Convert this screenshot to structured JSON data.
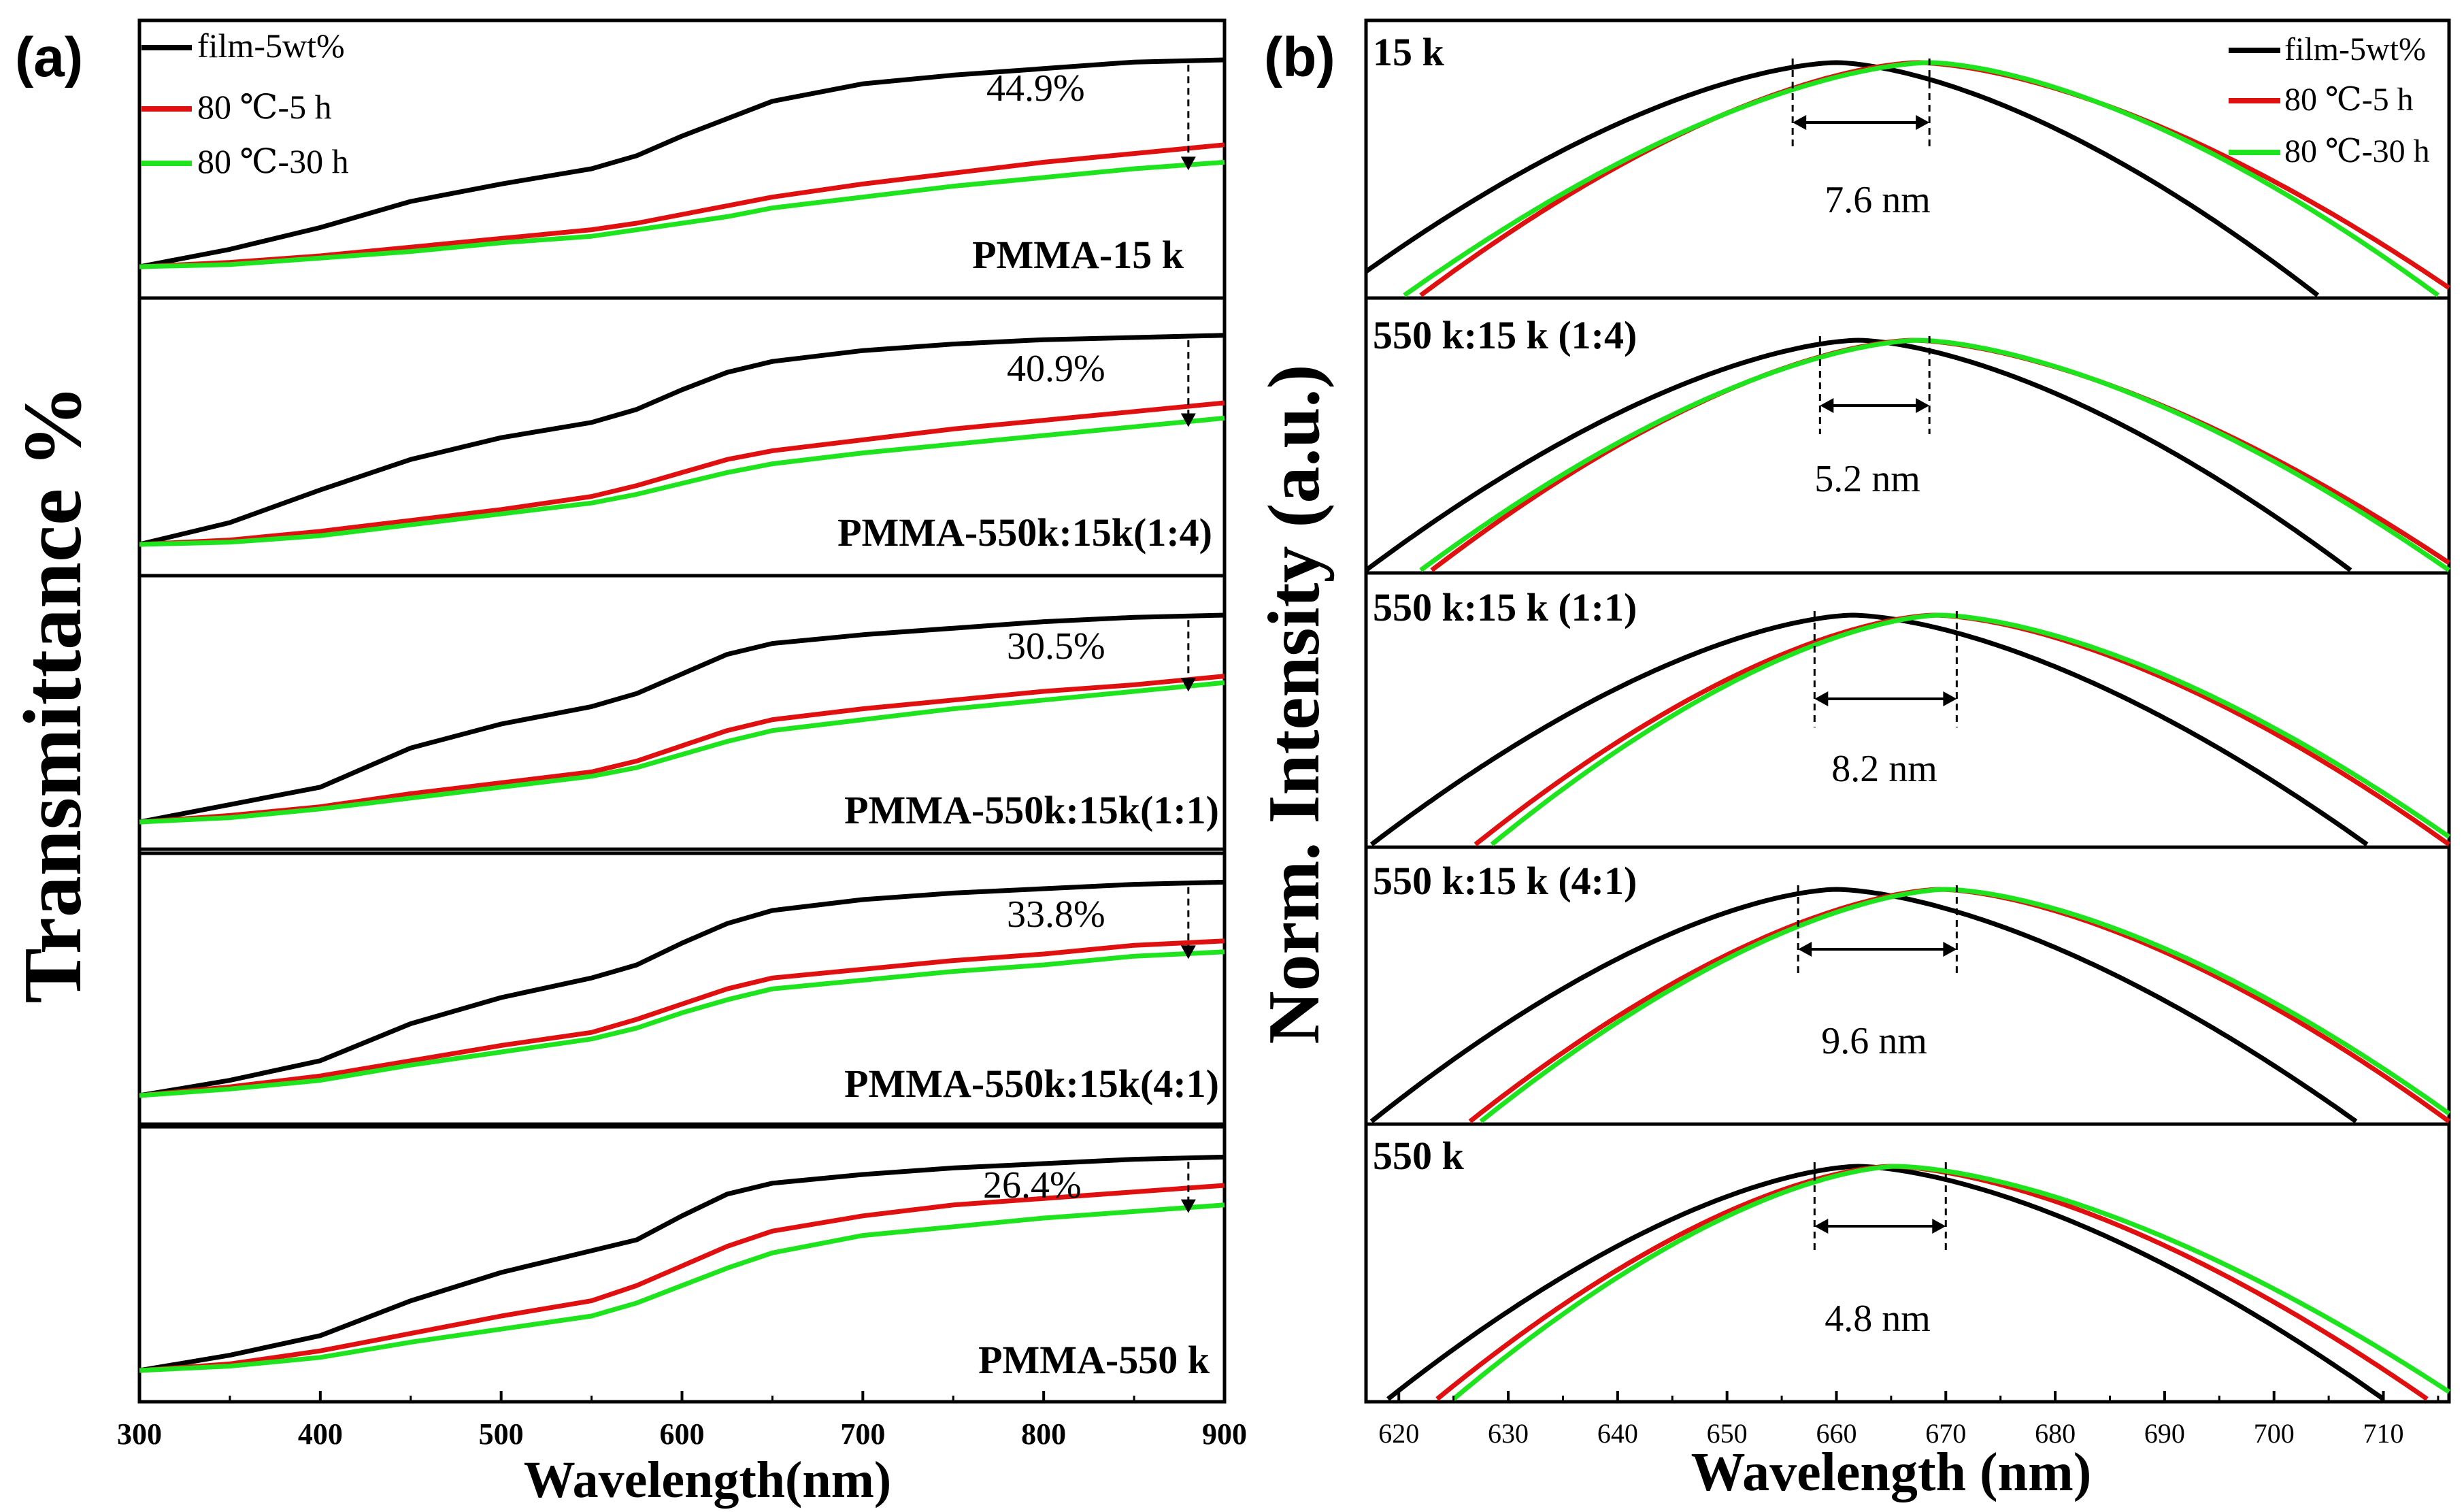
{
  "colors": {
    "film": "#000000",
    "h5": "#e01010",
    "h30": "#1ee41e",
    "axis": "#000000"
  },
  "chart_data": [
    {
      "type": "line",
      "panel_label": "(a)",
      "ylabel": "Transmittance %",
      "xlabel": "Wavelength(nm)",
      "xlim": [
        300,
        900
      ],
      "xticks": [
        "300",
        "400",
        "500",
        "600",
        "700",
        "800",
        "900"
      ],
      "legend": {
        "position": "top-left",
        "entries": [
          "film-5wt%",
          "80 ℃-5 h",
          "80 ℃-30 h"
        ]
      },
      "series_names": [
        "film-5wt%",
        "80 ℃-5 h",
        "80 ℃-30 h"
      ],
      "arrow_at_x": 880,
      "x": [
        300,
        350,
        400,
        450,
        500,
        550,
        575,
        600,
        625,
        650,
        700,
        750,
        800,
        850,
        900
      ],
      "subplots": [
        {
          "label": "PMMA-15 k",
          "drop_label": "44.9%",
          "series": [
            {
              "name": "film-5wt%",
              "values": [
                0.0,
                0.08,
                0.18,
                0.3,
                0.38,
                0.45,
                0.51,
                0.6,
                0.68,
                0.76,
                0.84,
                0.88,
                0.91,
                0.94,
                0.95
              ]
            },
            {
              "name": "80 ℃-5 h",
              "values": [
                0.0,
                0.02,
                0.05,
                0.09,
                0.13,
                0.17,
                0.2,
                0.24,
                0.28,
                0.32,
                0.38,
                0.43,
                0.48,
                0.52,
                0.56
              ]
            },
            {
              "name": "80 ℃-30 h",
              "values": [
                0.0,
                0.01,
                0.04,
                0.07,
                0.11,
                0.14,
                0.17,
                0.2,
                0.23,
                0.27,
                0.32,
                0.37,
                0.41,
                0.45,
                0.48
              ]
            }
          ]
        },
        {
          "label": "PMMA-550k:15k(1:4)",
          "drop_label": "40.9%",
          "series": [
            {
              "name": "film-5wt%",
              "values": [
                0.0,
                0.1,
                0.25,
                0.39,
                0.49,
                0.56,
                0.62,
                0.71,
                0.79,
                0.84,
                0.89,
                0.92,
                0.94,
                0.95,
                0.96
              ]
            },
            {
              "name": "80 ℃-5 h",
              "values": [
                0.0,
                0.02,
                0.06,
                0.11,
                0.16,
                0.22,
                0.27,
                0.33,
                0.39,
                0.43,
                0.48,
                0.53,
                0.57,
                0.61,
                0.65
              ]
            },
            {
              "name": "80 ℃-30 h",
              "values": [
                0.0,
                0.01,
                0.04,
                0.09,
                0.14,
                0.19,
                0.23,
                0.28,
                0.33,
                0.37,
                0.42,
                0.46,
                0.5,
                0.54,
                0.58
              ]
            }
          ]
        },
        {
          "label": "PMMA-550k:15k(1:1)",
          "drop_label": "30.5%",
          "series": [
            {
              "name": "film-5wt%",
              "values": [
                0.0,
                0.08,
                0.16,
                0.34,
                0.45,
                0.53,
                0.59,
                0.68,
                0.77,
                0.82,
                0.86,
                0.89,
                0.92,
                0.94,
                0.95
              ]
            },
            {
              "name": "80 ℃-5 h",
              "values": [
                0.0,
                0.03,
                0.07,
                0.13,
                0.18,
                0.23,
                0.28,
                0.35,
                0.42,
                0.47,
                0.52,
                0.56,
                0.6,
                0.63,
                0.67
              ]
            },
            {
              "name": "80 ℃-30 h",
              "values": [
                0.0,
                0.02,
                0.06,
                0.11,
                0.16,
                0.21,
                0.25,
                0.31,
                0.37,
                0.42,
                0.47,
                0.52,
                0.56,
                0.6,
                0.64
              ]
            }
          ]
        },
        {
          "label": "PMMA-550k:15k(4:1)",
          "drop_label": "33.8%",
          "series": [
            {
              "name": "film-5wt%",
              "values": [
                0.0,
                0.07,
                0.16,
                0.33,
                0.45,
                0.54,
                0.6,
                0.7,
                0.79,
                0.85,
                0.9,
                0.93,
                0.95,
                0.97,
                0.98
              ]
            },
            {
              "name": "80 ℃-5 h",
              "values": [
                0.0,
                0.04,
                0.09,
                0.16,
                0.23,
                0.29,
                0.35,
                0.42,
                0.49,
                0.54,
                0.58,
                0.62,
                0.65,
                0.69,
                0.71
              ]
            },
            {
              "name": "80 ℃-30 h",
              "values": [
                0.0,
                0.03,
                0.07,
                0.14,
                0.2,
                0.26,
                0.31,
                0.38,
                0.44,
                0.49,
                0.53,
                0.57,
                0.6,
                0.64,
                0.66
              ]
            }
          ]
        },
        {
          "label": "PMMA-550 k",
          "drop_label": "26.4%",
          "series": [
            {
              "name": "film-5wt%",
              "values": [
                0.0,
                0.07,
                0.16,
                0.32,
                0.45,
                0.55,
                0.6,
                0.71,
                0.81,
                0.86,
                0.9,
                0.93,
                0.95,
                0.97,
                0.98
              ]
            },
            {
              "name": "80 ℃-5 h",
              "values": [
                0.0,
                0.03,
                0.09,
                0.17,
                0.25,
                0.32,
                0.39,
                0.48,
                0.57,
                0.64,
                0.71,
                0.76,
                0.79,
                0.82,
                0.85
              ]
            },
            {
              "name": "80 ℃-30 h",
              "values": [
                0.0,
                0.02,
                0.06,
                0.13,
                0.19,
                0.25,
                0.31,
                0.39,
                0.47,
                0.54,
                0.62,
                0.66,
                0.7,
                0.73,
                0.76
              ]
            }
          ]
        }
      ]
    },
    {
      "type": "line",
      "panel_label": "(b)",
      "ylabel": "Norm. Intensity (a.u.)",
      "xlabel": "Wavelength (nm)",
      "xlim": [
        617,
        716
      ],
      "xticks": [
        "620",
        "630",
        "640",
        "650",
        "660",
        "670",
        "680",
        "690",
        "700",
        "710"
      ],
      "legend": {
        "position": "top-right",
        "entries": [
          "film-5wt%",
          "80 ℃-5 h",
          "80 ℃-30 h"
        ]
      },
      "series_names": [
        "film-5wt%",
        "80 ℃-5 h",
        "80 ℃-30 h"
      ],
      "subplots": [
        {
          "label": "15 k",
          "shift_label": "7.6 nm",
          "shift_from": 656.0,
          "shift_to": 668.5,
          "series": [
            {
              "name": "film-5wt%",
              "peak": 660.0,
              "left_end": 614,
              "right_end": 704
            },
            {
              "name": "80 ℃-5 h",
              "peak": 667.5,
              "left_end": 622,
              "right_end": 717
            },
            {
              "name": "80 ℃-30 h",
              "peak": 668.5,
              "left_end": 620.5,
              "right_end": 715
            }
          ]
        },
        {
          "label": "550 k:15 k (1:4)",
          "shift_label": "5.2 nm",
          "shift_from": 658.5,
          "shift_to": 668.5,
          "series": [
            {
              "name": "film-5wt%",
              "peak": 662.0,
              "left_end": 617,
              "right_end": 707
            },
            {
              "name": "80 ℃-5 h",
              "peak": 667.0,
              "left_end": 623,
              "right_end": 717
            },
            {
              "name": "80 ℃-30 h",
              "peak": 667.5,
              "left_end": 622,
              "right_end": 716
            }
          ]
        },
        {
          "label": "550 k:15 k (1:1)",
          "shift_label": "8.2 nm",
          "shift_from": 658.0,
          "shift_to": 671.0,
          "series": [
            {
              "name": "film-5wt%",
              "peak": 661.5,
              "left_end": 617.5,
              "right_end": 708.5
            },
            {
              "name": "80 ℃-5 h",
              "peak": 669.0,
              "left_end": 627,
              "right_end": 716
            },
            {
              "name": "80 ℃-30 h",
              "peak": 669.5,
              "left_end": 628.5,
              "right_end": 717
            }
          ]
        },
        {
          "label": "550 k:15 k (4:1)",
          "shift_label": "9.6 nm",
          "shift_from": 656.5,
          "shift_to": 671.0,
          "series": [
            {
              "name": "film-5wt%",
              "peak": 660.0,
              "left_end": 617.5,
              "right_end": 707.5
            },
            {
              "name": "80 ℃-5 h",
              "peak": 669.5,
              "left_end": 626.5,
              "right_end": 716
            },
            {
              "name": "80 ℃-30 h",
              "peak": 670.0,
              "left_end": 627.5,
              "right_end": 717
            }
          ]
        },
        {
          "label": "550 k",
          "shift_label": "4.8 nm",
          "shift_from": 658.0,
          "shift_to": 670.0,
          "series": [
            {
              "name": "film-5wt%",
              "peak": 662.0,
              "left_end": 619,
              "right_end": 710
            },
            {
              "name": "80 ℃-5 h",
              "peak": 665.0,
              "left_end": 623.5,
              "right_end": 714
            },
            {
              "name": "80 ℃-30 h",
              "peak": 665.5,
              "left_end": 625,
              "right_end": 717
            }
          ]
        }
      ]
    }
  ]
}
